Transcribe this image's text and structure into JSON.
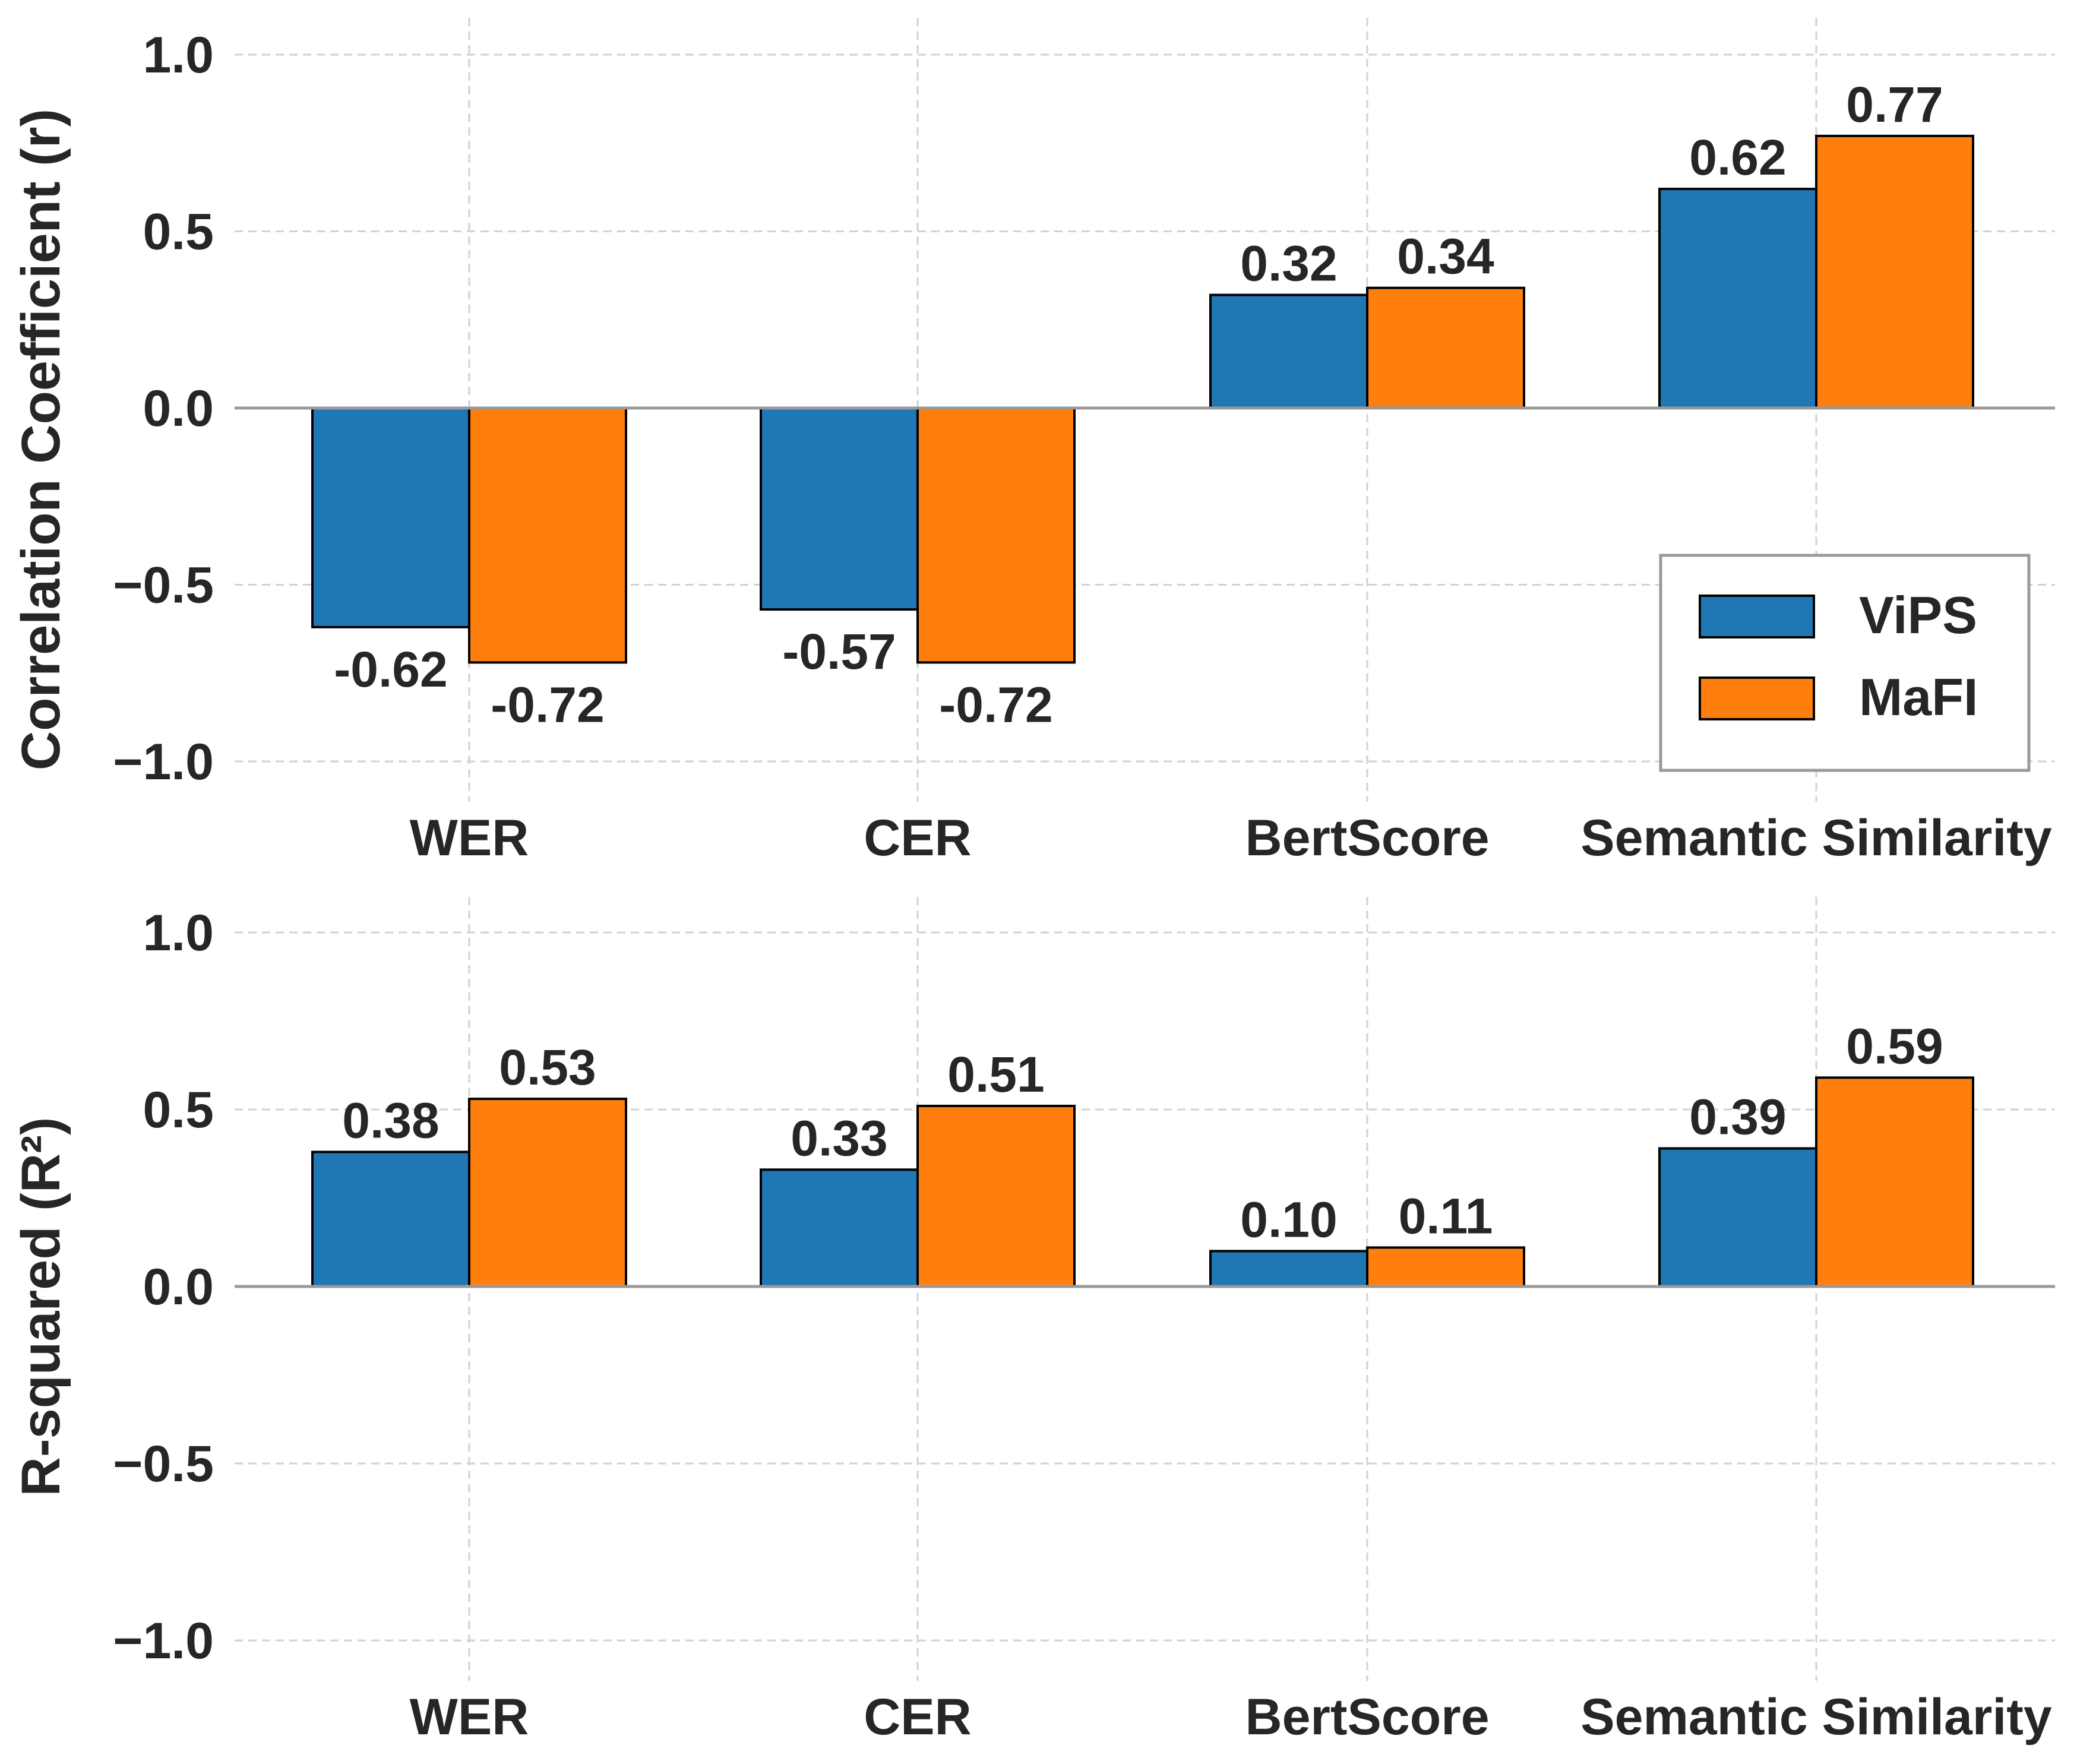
{
  "chart_data": [
    {
      "type": "bar",
      "ylabel": "Correlation Coefficient (r)",
      "categories": [
        "WER",
        "CER",
        "BertScore",
        "Semantic Similarity"
      ],
      "ylim": [
        -1.12,
        1.1
      ],
      "yticks": [
        1.0,
        0.5,
        0.0,
        -0.5,
        -1.0
      ],
      "ytick_labels": [
        "1.0",
        "0.5",
        "0.0",
        "−0.5",
        "−1.0"
      ],
      "grid": true,
      "legend": {
        "placement": "lower-right",
        "entries": [
          "ViPS",
          "MaFI"
        ]
      },
      "series": [
        {
          "name": "ViPS",
          "color": "#1f77b4",
          "values": [
            -0.62,
            -0.57,
            0.32,
            0.62
          ],
          "labels": [
            "-0.62",
            "-0.57",
            "0.32",
            "0.62"
          ]
        },
        {
          "name": "MaFI",
          "color": "#ff7f0e",
          "values": [
            -0.72,
            -0.72,
            0.34,
            0.77
          ],
          "labels": [
            "-0.72",
            "-0.72",
            "0.34",
            "0.77"
          ]
        }
      ]
    },
    {
      "type": "bar",
      "ylabel": "R-squared (R²)",
      "categories": [
        "WER",
        "CER",
        "BertScore",
        "Semantic Similarity"
      ],
      "ylim": [
        -1.12,
        1.1
      ],
      "yticks": [
        1.0,
        0.5,
        0.0,
        -0.5,
        -1.0
      ],
      "ytick_labels": [
        "1.0",
        "0.5",
        "0.0",
        "−0.5",
        "−1.0"
      ],
      "grid": true,
      "series": [
        {
          "name": "ViPS",
          "color": "#1f77b4",
          "values": [
            0.38,
            0.33,
            0.1,
            0.39
          ],
          "labels": [
            "0.38",
            "0.33",
            "0.10",
            "0.39"
          ]
        },
        {
          "name": "MaFI",
          "color": "#ff7f0e",
          "values": [
            0.53,
            0.51,
            0.11,
            0.59
          ],
          "labels": [
            "0.53",
            "0.51",
            "0.11",
            "0.59"
          ]
        }
      ]
    }
  ]
}
